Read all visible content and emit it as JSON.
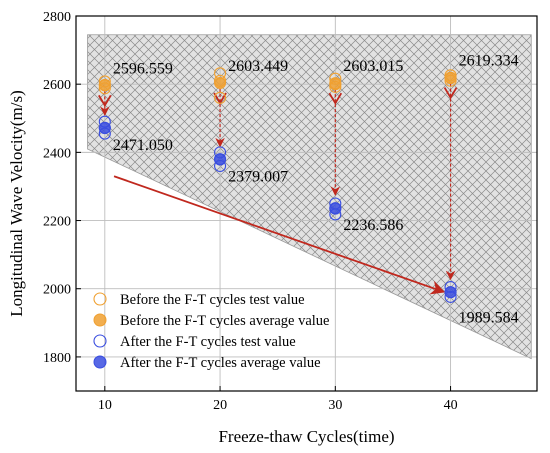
{
  "chart_data": {
    "type": "scatter",
    "title": "",
    "xlabel": "Freeze-thaw Cycles(time)",
    "ylabel": "Longitudinal Wave Velocity(m/s)",
    "xlim": [
      7.5,
      47.5
    ],
    "ylim": [
      1700,
      2800
    ],
    "xticks": [
      10,
      20,
      30,
      40
    ],
    "yticks": [
      1800,
      2000,
      2200,
      2400,
      2600,
      2800
    ],
    "grid": true,
    "legend_position": "bottom-left",
    "series": [
      {
        "name": "Before the F-T cycles test value",
        "marker": "open-circle",
        "color": "#f0a030",
        "points": [
          {
            "x": 10,
            "y": 2608
          },
          {
            "x": 10,
            "y": 2598
          },
          {
            "x": 10,
            "y": 2588
          },
          {
            "x": 20,
            "y": 2632
          },
          {
            "x": 20,
            "y": 2610
          },
          {
            "x": 20,
            "y": 2560
          },
          {
            "x": 30,
            "y": 2616
          },
          {
            "x": 30,
            "y": 2600
          },
          {
            "x": 30,
            "y": 2592
          },
          {
            "x": 40,
            "y": 2626
          },
          {
            "x": 40,
            "y": 2618
          },
          {
            "x": 40,
            "y": 2610
          }
        ]
      },
      {
        "name": "Before the F-T cycles average value",
        "marker": "filled-circle",
        "color": "#f0a030",
        "x": [
          10,
          20,
          30,
          40
        ],
        "values": [
          2596.559,
          2603.449,
          2603.015,
          2619.334
        ]
      },
      {
        "name": "After the F-T cycles test value",
        "marker": "open-circle",
        "color": "#3a4ee0",
        "points": [
          {
            "x": 10,
            "y": 2490
          },
          {
            "x": 10,
            "y": 2472
          },
          {
            "x": 10,
            "y": 2455
          },
          {
            "x": 20,
            "y": 2400
          },
          {
            "x": 20,
            "y": 2380
          },
          {
            "x": 20,
            "y": 2360
          },
          {
            "x": 30,
            "y": 2250
          },
          {
            "x": 30,
            "y": 2235
          },
          {
            "x": 30,
            "y": 2218
          },
          {
            "x": 40,
            "y": 2005
          },
          {
            "x": 40,
            "y": 1990
          },
          {
            "x": 40,
            "y": 1976
          }
        ]
      },
      {
        "name": "After the F-T cycles average value",
        "marker": "filled-circle",
        "color": "#3a4ee0",
        "x": [
          10,
          20,
          30,
          40
        ],
        "values": [
          2471.05,
          2379.007,
          2236.586,
          1989.584
        ]
      }
    ],
    "data_labels": [
      {
        "text": "2596.559",
        "x": 10,
        "y": 2596.559
      },
      {
        "text": "2603.449",
        "x": 20,
        "y": 2603.449
      },
      {
        "text": "2603.015",
        "x": 30,
        "y": 2603.015
      },
      {
        "text": "2619.334",
        "x": 40,
        "y": 2619.334
      },
      {
        "text": "2471.050",
        "x": 10,
        "y": 2471.05
      },
      {
        "text": "2379.007",
        "x": 20,
        "y": 2379.007
      },
      {
        "text": "2236.586",
        "x": 30,
        "y": 2236.586
      },
      {
        "text": "1989.584",
        "x": 40,
        "y": 1989.584
      }
    ],
    "shaded_region": [
      {
        "x": 8.5,
        "y": 2745
      },
      {
        "x": 47,
        "y": 2745
      },
      {
        "x": 47,
        "y": 1795
      },
      {
        "x": 8.5,
        "y": 2410
      }
    ],
    "trend_arrow": {
      "from": {
        "x": 10.8,
        "y": 2330
      },
      "to": {
        "x": 39.3,
        "y": 1992
      },
      "color": "#c0281e"
    },
    "drop_arrows_color": "#c0281e"
  }
}
